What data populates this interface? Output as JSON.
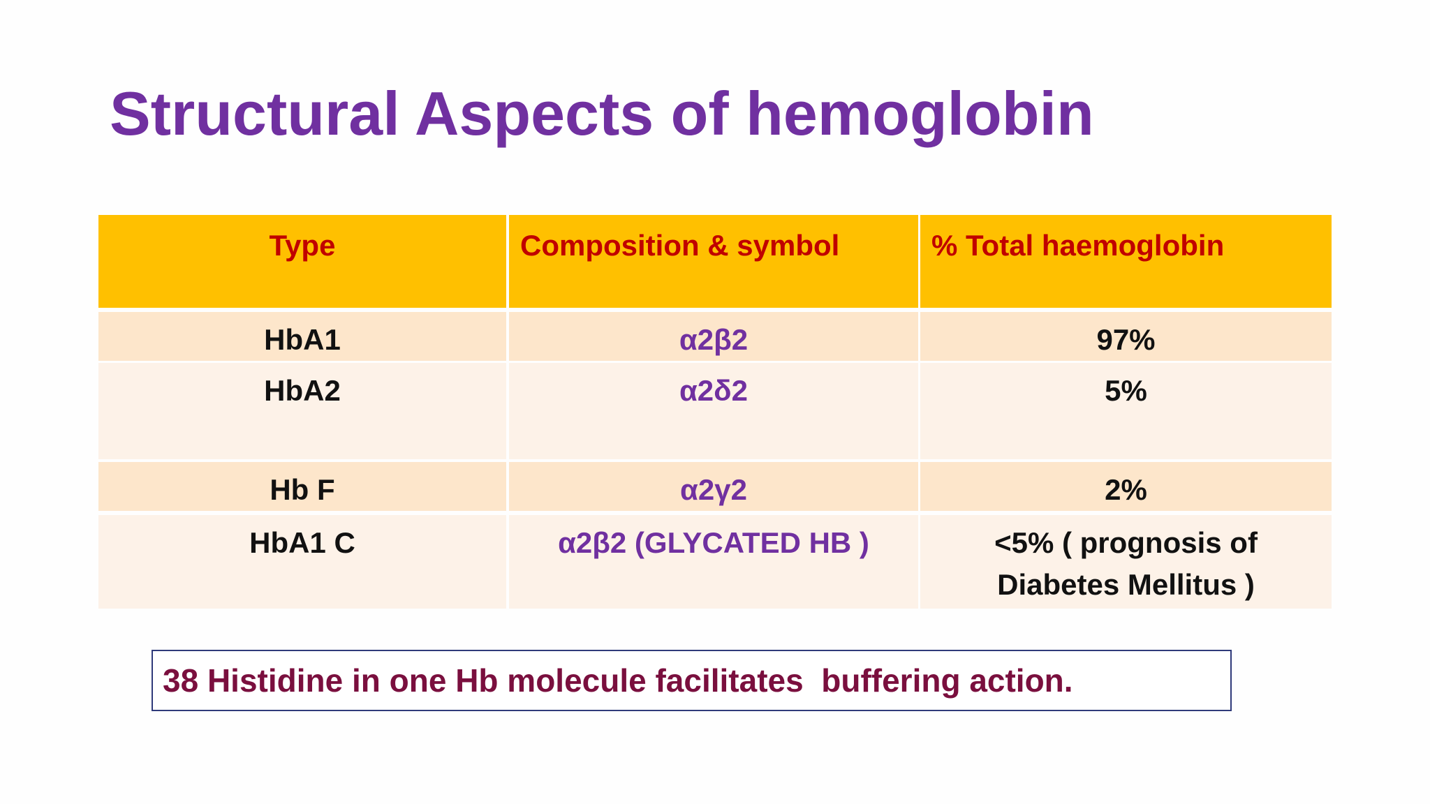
{
  "title": "Structural Aspects of hemoglobin",
  "table": {
    "headers": [
      "Type",
      "Composition & symbol",
      "% Total haemoglobin"
    ],
    "rows": [
      [
        "HbA1",
        "α2β2",
        "97%"
      ],
      [
        "HbA2",
        "α2δ2",
        "5%"
      ],
      [
        "Hb F",
        "α2γ2",
        "2%"
      ],
      [
        "HbA1 C",
        "α2β2  (GLYCATED HB )",
        "<5% ( prognosis of Diabetes Mellitus )"
      ]
    ]
  },
  "note": "38 Histidine in one Hb molecule facilitates  buffering action."
}
